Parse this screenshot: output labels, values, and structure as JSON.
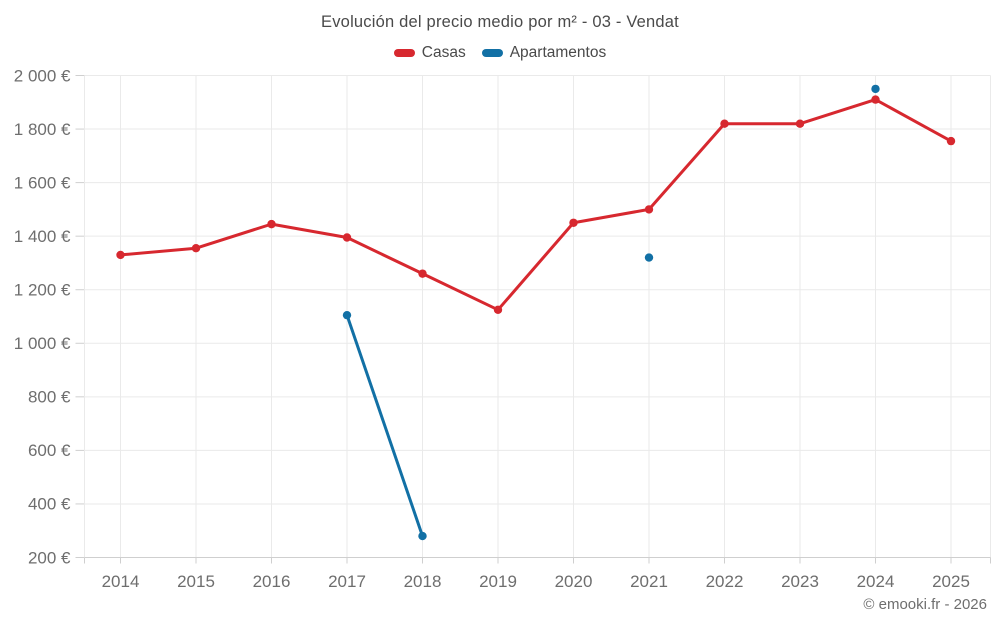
{
  "header": {
    "title": "Evolución del precio medio por m² - 03 - Vendat"
  },
  "legend": {
    "items": [
      {
        "label": "Casas",
        "color": "#d7282f"
      },
      {
        "label": "Apartamentos",
        "color": "#1270a5"
      }
    ]
  },
  "footer": {
    "credits": "© emooki.fr - 2026"
  },
  "chart_data": {
    "type": "line",
    "title": "Evolución del precio medio por m² - 03 - Vendat",
    "xlabel": "",
    "ylabel": "",
    "grid": true,
    "legend_position": "top",
    "currency": "€",
    "x": [
      2014,
      2015,
      2016,
      2017,
      2018,
      2019,
      2020,
      2021,
      2022,
      2023,
      2024,
      2025
    ],
    "x_tick_labels": [
      "2014",
      "2015",
      "2016",
      "2017",
      "2018",
      "2019",
      "2020",
      "2021",
      "2022",
      "2023",
      "2024",
      "2025"
    ],
    "ylim": [
      200,
      2000
    ],
    "y_ticks": [
      200,
      400,
      600,
      800,
      1000,
      1200,
      1400,
      1600,
      1800,
      2000
    ],
    "y_tick_labels": [
      "200 €",
      "400 €",
      "600 €",
      "800 €",
      "1 000 €",
      "1 200 €",
      "1 400 €",
      "1 600 €",
      "1 800 €",
      "2 000 €"
    ],
    "series": [
      {
        "name": "Casas",
        "color": "#d7282f",
        "values": [
          1330,
          1355,
          1445,
          1395,
          1260,
          1125,
          1450,
          1500,
          1820,
          1820,
          1910,
          1755
        ]
      },
      {
        "name": "Apartamentos",
        "color": "#1270a5",
        "values": [
          null,
          null,
          null,
          1105,
          280,
          null,
          null,
          1320,
          null,
          null,
          1950,
          null
        ]
      }
    ]
  }
}
